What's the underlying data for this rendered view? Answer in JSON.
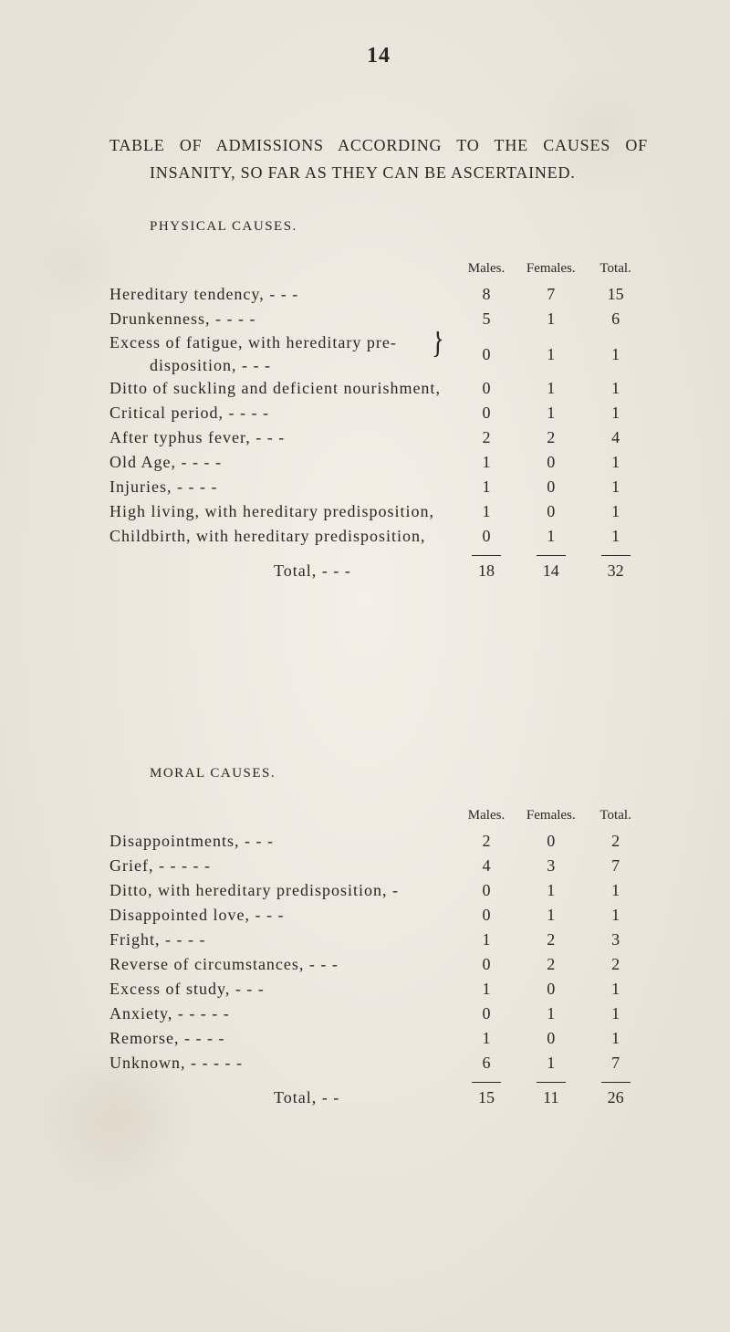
{
  "page_number": "14",
  "intro_line1": "TABLE OF ADMISSIONS ACCORDING TO THE CAUSES OF",
  "intro_line2": "INSANITY, SO FAR AS THEY CAN BE ASCERTAINED.",
  "col_headers": {
    "males": "Males.",
    "females": "Females.",
    "total": "Total."
  },
  "physical": {
    "title": "PHYSICAL CAUSES.",
    "rows": [
      {
        "label": "Hereditary tendency,    -            -           -",
        "m": "8",
        "f": "7",
        "t": "15"
      },
      {
        "label": "Drunkenness,          -           -            -           -",
        "m": "5",
        "f": "1",
        "t": "6"
      }
    ],
    "brace_row": {
      "line1": "Excess  of  fatigue,  with  hereditary  pre-",
      "line2": "disposition,       -           -           -",
      "m": "0",
      "f": "1",
      "t": "1"
    },
    "rows2": [
      {
        "label": "Ditto  of suckling and deficient nourishment,",
        "m": "0",
        "f": "1",
        "t": "1"
      },
      {
        "label": "Critical period,        -            -            -           -",
        "m": "0",
        "f": "1",
        "t": "1"
      },
      {
        "label": "After typhus fever,        -           -           -",
        "m": "2",
        "f": "2",
        "t": "4"
      },
      {
        "label": "Old Age,             -           -           -           -",
        "m": "1",
        "f": "0",
        "t": "1"
      },
      {
        "label": "Injuries,           -           -           -           -",
        "m": "1",
        "f": "0",
        "t": "1"
      },
      {
        "label": "High living, with hereditary predisposition,",
        "m": "1",
        "f": "0",
        "t": "1"
      },
      {
        "label": "Childbirth, with hereditary predisposition,",
        "m": "0",
        "f": "1",
        "t": "1"
      }
    ],
    "total": {
      "label": "Total,       -           -           -",
      "m": "18",
      "f": "14",
      "t": "32"
    }
  },
  "moral": {
    "title": "MORAL CAUSES.",
    "rows": [
      {
        "label": "Disappointments,           -           -           -",
        "m": "2",
        "f": "0",
        "t": "2"
      },
      {
        "label": "Grief,          -           -           -           -           -",
        "m": "4",
        "f": "3",
        "t": "7"
      },
      {
        "label": "Ditto, with hereditary predisposition,    -",
        "m": "0",
        "f": "1",
        "t": "1"
      },
      {
        "label": "Disappointed love,            -           -           -",
        "m": "0",
        "f": "1",
        "t": "1"
      },
      {
        "label": "Fright,            -           -           -           -",
        "m": "1",
        "f": "2",
        "t": "3"
      },
      {
        "label": "Reverse of circumstances,  -           -           -",
        "m": "0",
        "f": "2",
        "t": "2"
      },
      {
        "label": "Excess of study,           -           -           -",
        "m": "1",
        "f": "0",
        "t": "1"
      },
      {
        "label": "Anxiety,    -           -           -           -           -",
        "m": "0",
        "f": "1",
        "t": "1"
      },
      {
        "label": "Remorse,          -           -           -           -",
        "m": "1",
        "f": "0",
        "t": "1"
      },
      {
        "label": "Unknown,  -           -           -           -           -",
        "m": "6",
        "f": "1",
        "t": "7"
      }
    ],
    "total": {
      "label": "Total,      -           -",
      "m": "15",
      "f": "11",
      "t": "26"
    }
  }
}
